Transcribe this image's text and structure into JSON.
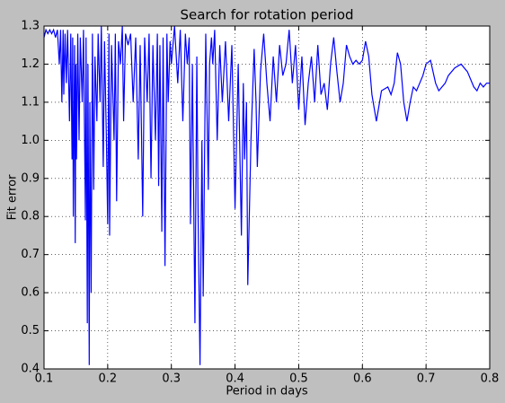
{
  "chart_data": {
    "type": "line",
    "title": "Search for rotation period",
    "xlabel": "Period in days",
    "ylabel": "Fit error",
    "color": "#0000ff",
    "grid": true,
    "xlim": [
      0.1,
      0.8
    ],
    "xticks": [
      0.1,
      0.2,
      0.3,
      0.4,
      0.5,
      0.6,
      0.7,
      0.8
    ],
    "ylim": [
      0.4,
      1.3
    ],
    "yticks": [
      0.4,
      0.5,
      0.6,
      0.7,
      0.8,
      0.9,
      {
        "value": 1,
        "label": "1.0"
      },
      1.1,
      1.2,
      1.3
    ],
    "x": [
      0.1,
      0.103,
      0.106,
      0.109,
      0.112,
      0.115,
      0.118,
      0.121,
      0.124,
      0.126,
      0.128,
      0.13,
      0.131,
      0.133,
      0.135,
      0.137,
      0.14,
      0.142,
      0.144,
      0.145,
      0.146,
      0.148,
      0.149,
      0.15,
      0.151,
      0.153,
      0.155,
      0.157,
      0.16,
      0.162,
      0.165,
      0.166,
      0.168,
      0.169,
      0.171,
      0.172,
      0.174,
      0.176,
      0.178,
      0.18,
      0.183,
      0.185,
      0.188,
      0.19,
      0.193,
      0.195,
      0.198,
      0.2,
      0.202,
      0.203,
      0.206,
      0.21,
      0.212,
      0.214,
      0.217,
      0.22,
      0.223,
      0.225,
      0.228,
      0.232,
      0.236,
      0.24,
      0.244,
      0.248,
      0.251,
      0.255,
      0.258,
      0.262,
      0.265,
      0.268,
      0.271,
      0.275,
      0.278,
      0.28,
      0.282,
      0.285,
      0.287,
      0.29,
      0.293,
      0.295,
      0.298,
      0.3,
      0.305,
      0.31,
      0.314,
      0.318,
      0.322,
      0.325,
      0.328,
      0.33,
      0.333,
      0.337,
      0.34,
      0.342,
      0.345,
      0.348,
      0.35,
      0.354,
      0.358,
      0.36,
      0.363,
      0.365,
      0.368,
      0.372,
      0.376,
      0.38,
      0.385,
      0.39,
      0.395,
      0.4,
      0.405,
      0.41,
      0.413,
      0.415,
      0.418,
      0.42,
      0.425,
      0.43,
      0.433,
      0.435,
      0.44,
      0.445,
      0.45,
      0.455,
      0.46,
      0.465,
      0.47,
      0.475,
      0.48,
      0.485,
      0.49,
      0.495,
      0.5,
      0.505,
      0.51,
      0.515,
      0.52,
      0.525,
      0.53,
      0.535,
      0.54,
      0.545,
      0.55,
      0.555,
      0.56,
      0.565,
      0.57,
      0.575,
      0.58,
      0.585,
      0.59,
      0.595,
      0.6,
      0.605,
      0.61,
      0.615,
      0.622,
      0.63,
      0.64,
      0.645,
      0.65,
      0.655,
      0.66,
      0.665,
      0.67,
      0.675,
      0.68,
      0.685,
      0.69,
      0.695,
      0.7,
      0.707,
      0.715,
      0.72,
      0.73,
      0.735,
      0.745,
      0.755,
      0.765,
      0.775,
      0.78,
      0.785,
      0.79,
      0.795,
      0.8
    ],
    "values": [
      1.27,
      1.29,
      1.28,
      1.29,
      1.28,
      1.29,
      1.27,
      1.29,
      1.2,
      1.29,
      1.1,
      1.29,
      1.12,
      1.28,
      1.15,
      1.29,
      1.05,
      1.28,
      0.95,
      1.27,
      0.8,
      1.25,
      0.73,
      1.2,
      0.95,
      1.28,
      1.0,
      1.27,
      1.1,
      1.29,
      0.79,
      1.27,
      0.52,
      1.2,
      0.41,
      1.1,
      0.6,
      1.28,
      0.87,
      1.22,
      1.05,
      1.28,
      1.1,
      1.3,
      0.93,
      1.26,
      1.0,
      0.78,
      1.28,
      0.75,
      1.25,
      1.0,
      1.28,
      0.84,
      1.26,
      1.2,
      1.3,
      1.05,
      1.28,
      1.25,
      1.28,
      1.1,
      1.27,
      0.95,
      1.25,
      0.8,
      1.27,
      1.1,
      1.28,
      0.9,
      1.25,
      1.0,
      1.28,
      0.88,
      1.25,
      0.76,
      1.27,
      0.67,
      1.28,
      1.1,
      1.26,
      1.2,
      1.3,
      1.15,
      1.29,
      1.05,
      1.28,
      1.2,
      1.27,
      0.78,
      1.2,
      0.52,
      1.22,
      0.8,
      0.41,
      1.0,
      0.59,
      1.28,
      0.87,
      1.2,
      1.27,
      1.2,
      1.29,
      1.0,
      1.25,
      1.1,
      1.26,
      1.05,
      1.25,
      0.82,
      1.2,
      0.75,
      1.15,
      0.95,
      1.1,
      0.62,
      1.0,
      1.24,
      1.1,
      0.93,
      1.18,
      1.28,
      1.15,
      1.05,
      1.22,
      1.1,
      1.25,
      1.17,
      1.2,
      1.29,
      1.15,
      1.25,
      1.08,
      1.22,
      1.04,
      1.15,
      1.22,
      1.1,
      1.25,
      1.12,
      1.15,
      1.08,
      1.2,
      1.27,
      1.18,
      1.1,
      1.15,
      1.25,
      1.22,
      1.2,
      1.21,
      1.2,
      1.21,
      1.26,
      1.22,
      1.12,
      1.05,
      1.13,
      1.14,
      1.12,
      1.15,
      1.23,
      1.2,
      1.1,
      1.05,
      1.1,
      1.14,
      1.13,
      1.15,
      1.17,
      1.2,
      1.21,
      1.15,
      1.13,
      1.15,
      1.17,
      1.19,
      1.2,
      1.18,
      1.14,
      1.13,
      1.15,
      1.14,
      1.15,
      1.15
    ]
  }
}
